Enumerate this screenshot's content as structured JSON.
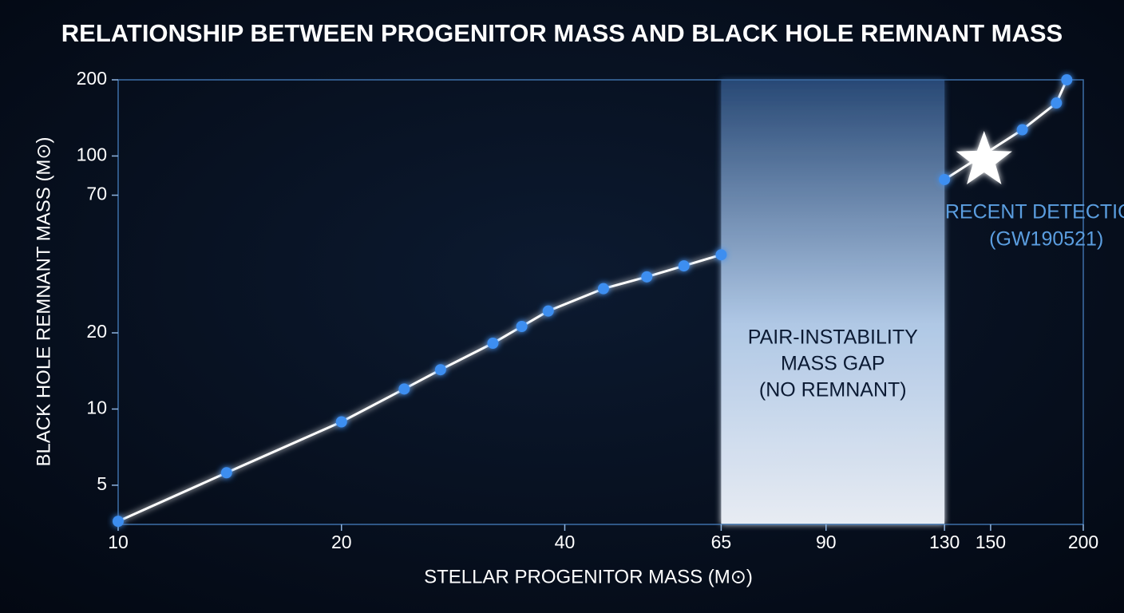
{
  "chart_data": {
    "type": "line",
    "title": "RELATIONSHIP BETWEEN PROGENITOR MASS AND BLACK HOLE REMNANT MASS",
    "x_label": "STELLAR PROGENITOR MASS (M⊙)",
    "y_label": "BLACK HOLE REMNANT MASS (M⊙)",
    "xscale": "log",
    "yscale": "log",
    "xlim": [
      10,
      200
    ],
    "ylim": [
      3.5,
      200
    ],
    "xticks": [
      10,
      20,
      40,
      65,
      90,
      130,
      150,
      200
    ],
    "yticks": [
      5,
      10,
      20,
      70,
      100,
      200
    ],
    "line_color": "#ffffff",
    "series": [
      {
        "color": "#3d8ef0",
        "x": [
          10,
          14,
          20,
          24.3,
          27.2,
          32,
          35,
          38,
          45.1,
          51.6,
          57.9,
          65
        ],
        "values": [
          3.6,
          5.6,
          8.9,
          12,
          14.3,
          18.2,
          21.2,
          24.4,
          29.9,
          33.3,
          36.8,
          40.7
        ]
      },
      {
        "color": "#3d8ef0",
        "x": [
          130,
          165.5,
          184,
          190
        ],
        "values": [
          80.7,
          127,
          162,
          200
        ]
      }
    ],
    "shaded_region": {
      "x": [
        65,
        130
      ],
      "label": [
        "PAIR-INSTABILITY",
        "MASS GAP",
        "(NO REMNANT)"
      ]
    },
    "highlight": {
      "x": 147,
      "y": 96,
      "color": "#ffffff",
      "label": [
        "RECENT DETECTION",
        "(GW190521)"
      ],
      "label_color": "#5b9ee0"
    }
  }
}
